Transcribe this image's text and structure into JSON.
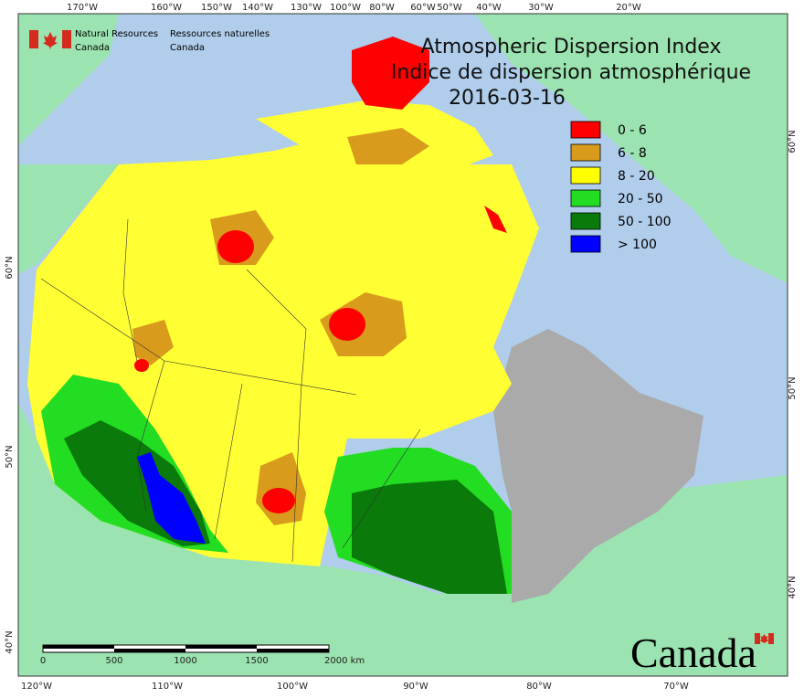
{
  "header": {
    "agency_en": [
      "Natural Resources",
      "Canada"
    ],
    "agency_fr": [
      "Ressources naturelles",
      "Canada"
    ]
  },
  "title": [
    "Atmospheric Dispersion Index",
    "Indice de dispersion atmosphérique",
    "2016-03-16"
  ],
  "legend": [
    {
      "label": "0 - 6",
      "color": "#ff0000"
    },
    {
      "label": "6 - 8",
      "color": "#d99b1c"
    },
    {
      "label": "8 - 20",
      "color": "#ffff00"
    },
    {
      "label": "20 - 50",
      "color": "#22dd22"
    },
    {
      "label": "50 - 100",
      "color": "#0a7a0a"
    },
    {
      "label": "> 100",
      "color": "#0000ff"
    }
  ],
  "top_labels": [
    "170°W",
    "160°W",
    "150°W",
    "140°W",
    "130°W",
    "100°W",
    "80°W",
    "60°W",
    "50°W",
    "40°W",
    "30°W",
    "20°W"
  ],
  "bottom_labels": [
    "120°W",
    "110°W",
    "100°W",
    "90°W",
    "80°W",
    "70°W"
  ],
  "left_labels": [
    "60°N",
    "50°N",
    "40°N"
  ],
  "right_labels": [
    "60°N",
    "50°N",
    "40°N"
  ],
  "scale_bar": {
    "labels": [
      "0",
      "500",
      "1000",
      "1500",
      "2000 km"
    ]
  },
  "wordmark": "Canada"
}
